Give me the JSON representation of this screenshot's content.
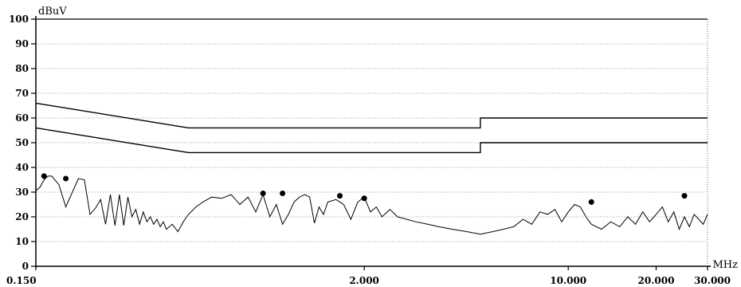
{
  "chart_data": {
    "type": "line",
    "title": "",
    "ylabel": "dBuV",
    "xlabel": "MHz",
    "y_unit_label": "dBuV",
    "x_unit_label": "MHz",
    "x_scale": "log",
    "xlim": [
      0.15,
      30
    ],
    "ylim": [
      0,
      100
    ],
    "y_ticks": [
      0,
      10,
      20,
      30,
      40,
      50,
      60,
      70,
      80,
      90,
      100
    ],
    "y_tick_labels": [
      "0",
      "10",
      "20",
      "30",
      "40",
      "50",
      "60",
      "70",
      "80",
      "90",
      "100"
    ],
    "x_tick_labels": [
      "0.150",
      "2.000",
      "10.000",
      "20.000",
      "30.000"
    ],
    "x_tick_values": [
      0.15,
      2,
      10,
      20,
      30
    ],
    "grid": true,
    "grid_style": "dotted",
    "colors": {
      "trace": "#000000",
      "limit": "#000000",
      "grid": "#7a7a7a",
      "markers": "#000000"
    },
    "series": [
      {
        "key": "limit_upper",
        "x": [
          0.15,
          0.5,
          5,
          5,
          30
        ],
        "y": [
          66,
          56,
          56,
          60,
          60
        ]
      },
      {
        "key": "limit_lower",
        "x": [
          0.15,
          0.5,
          5,
          5,
          30
        ],
        "y": [
          56,
          46,
          46,
          50,
          50
        ]
      },
      {
        "key": "measured",
        "x": [
          0.15,
          0.155,
          0.16,
          0.165,
          0.17,
          0.18,
          0.19,
          0.2,
          0.21,
          0.22,
          0.23,
          0.24,
          0.25,
          0.26,
          0.27,
          0.28,
          0.29,
          0.3,
          0.31,
          0.32,
          0.33,
          0.34,
          0.35,
          0.36,
          0.37,
          0.38,
          0.39,
          0.4,
          0.41,
          0.42,
          0.44,
          0.46,
          0.48,
          0.5,
          0.53,
          0.56,
          0.6,
          0.65,
          0.7,
          0.75,
          0.8,
          0.85,
          0.9,
          0.95,
          1.0,
          1.05,
          1.1,
          1.15,
          1.2,
          1.25,
          1.3,
          1.35,
          1.4,
          1.45,
          1.5,
          1.6,
          1.7,
          1.8,
          1.9,
          2.0,
          2.1,
          2.2,
          2.3,
          2.45,
          2.6,
          2.8,
          3.0,
          3.3,
          3.6,
          4.0,
          4.5,
          5.0,
          5.5,
          6.0,
          6.5,
          7.0,
          7.5,
          8.0,
          8.5,
          9.0,
          9.5,
          10.0,
          10.5,
          11.0,
          11.5,
          12.0,
          12.5,
          13.0,
          14.0,
          15.0,
          16.0,
          17.0,
          18.0,
          19.0,
          20.0,
          21.0,
          22.0,
          23.0,
          24.0,
          25.0,
          26.0,
          27.0,
          28.0,
          29.0,
          30.0
        ],
        "y": [
          30.5,
          32,
          35,
          36.5,
          36.5,
          33,
          24,
          30,
          35.5,
          35,
          21,
          23.5,
          27,
          17,
          29,
          16.5,
          29,
          16.5,
          28,
          20,
          23,
          17,
          22,
          18,
          20,
          17,
          19,
          16,
          18,
          15,
          17,
          14,
          18,
          21,
          24,
          26,
          28,
          27.5,
          29,
          25,
          28,
          22,
          29,
          20,
          25,
          17,
          21,
          26,
          28,
          29,
          28,
          17.5,
          24,
          21,
          26,
          27,
          25,
          19,
          26,
          28,
          22,
          24,
          20,
          23,
          20,
          19,
          18,
          17,
          16,
          15,
          14,
          13,
          14,
          15,
          16,
          19,
          17,
          22,
          21,
          23,
          18,
          22,
          25,
          24,
          20,
          17,
          16,
          15,
          18,
          16,
          20,
          17,
          22,
          18,
          21,
          24,
          18,
          22,
          15,
          20,
          16,
          21,
          19,
          17,
          21
        ]
      }
    ],
    "markers": {
      "x": [
        0.16,
        0.19,
        0.9,
        1.05,
        1.65,
        2.0,
        12,
        25
      ],
      "y": [
        36.5,
        35.5,
        29.5,
        29.5,
        28.5,
        27.5,
        26,
        28.5
      ]
    }
  }
}
